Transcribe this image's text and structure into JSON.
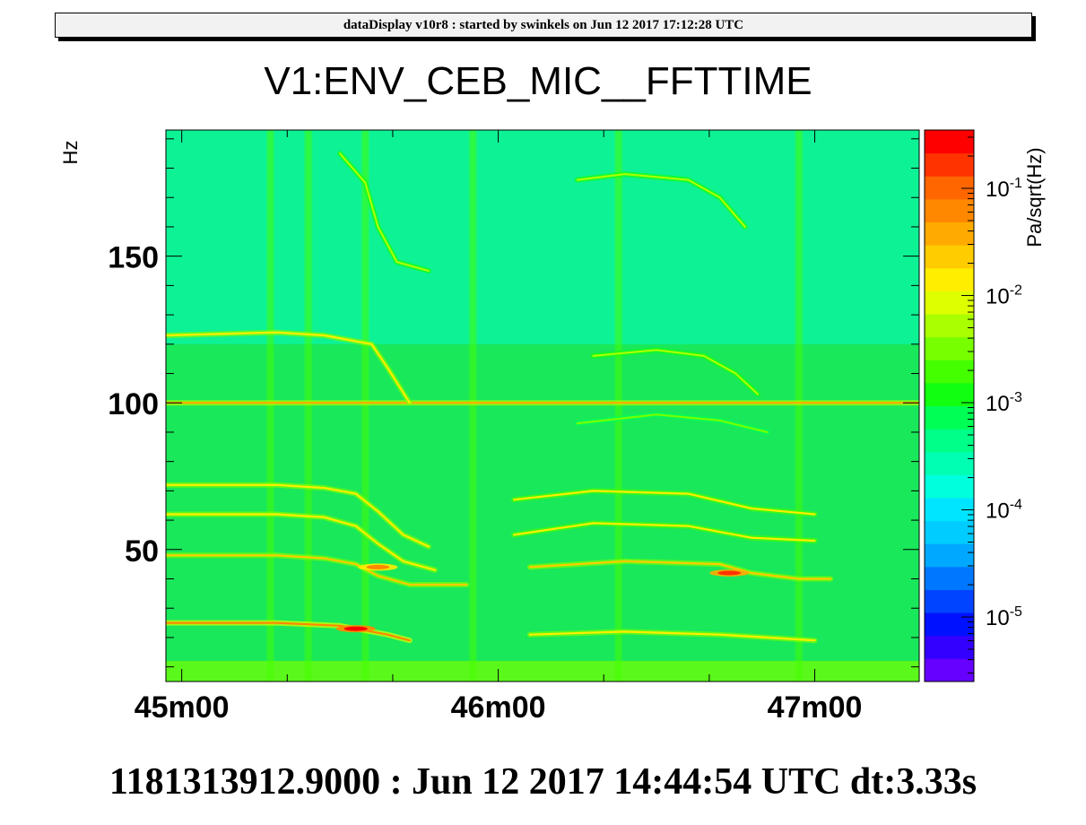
{
  "banner": {
    "text": "dataDisplay v10r8 : started by swinkels on Jun 12 2017 17:12:28 UTC"
  },
  "footer": {
    "text": "1181313912.9000 : Jun 12 2017 14:44:54 UTC dt:3.33s"
  },
  "chart_data": {
    "type": "heatmap",
    "title": "V1:ENV_CEB_MIC__FFTTIME",
    "xlabel": "",
    "ylabel": "Hz",
    "zlabel": "Pa/sqrt(Hz)",
    "x_unit": "minutes",
    "xlim": [
      44.95,
      47.33
    ],
    "ylim": [
      5,
      193
    ],
    "zlim": [
      2.5e-06,
      0.35
    ],
    "z_scale": "log",
    "x_ticks": [
      {
        "value": 45,
        "label": "45m00"
      },
      {
        "value": 46,
        "label": "46m00"
      },
      {
        "value": 47,
        "label": "47m00"
      }
    ],
    "y_ticks": [
      {
        "value": 50,
        "label": "50"
      },
      {
        "value": 100,
        "label": "100"
      },
      {
        "value": 150,
        "label": "150"
      }
    ],
    "z_ticks": [
      {
        "exp": -5,
        "label": "10",
        "sup": "-5"
      },
      {
        "exp": -4,
        "label": "10",
        "sup": "-4"
      },
      {
        "exp": -3,
        "label": "10",
        "sup": "-3"
      },
      {
        "exp": -2,
        "label": "10",
        "sup": "-2"
      },
      {
        "exp": -1,
        "label": "10",
        "sup": "-1"
      }
    ],
    "palette": [
      "#6600ff",
      "#3300ff",
      "#0011ff",
      "#0044ff",
      "#0077ff",
      "#00a8ff",
      "#00ccff",
      "#00e5ff",
      "#00ffdd",
      "#00ffb3",
      "#00ff88",
      "#00ff55",
      "#11ff11",
      "#44ff00",
      "#77ff00",
      "#aaff00",
      "#ddff00",
      "#ffee00",
      "#ffcc00",
      "#ffaa00",
      "#ff8800",
      "#ff6600",
      "#ff3300",
      "#ff0000"
    ],
    "background_level": 0.4,
    "background_color": "#19e85a",
    "lines": [
      {
        "name": "constant-100Hz",
        "points": [
          [
            44.95,
            100
          ],
          [
            47.33,
            100
          ]
        ],
        "level": 0.82
      },
      {
        "name": "tone-123",
        "points": [
          [
            44.95,
            123
          ],
          [
            45.3,
            124
          ],
          [
            45.45,
            123
          ],
          [
            45.6,
            120
          ],
          [
            45.65,
            112
          ],
          [
            45.72,
            100
          ]
        ],
        "level": 0.75
      },
      {
        "name": "tone-72",
        "points": [
          [
            44.95,
            72
          ],
          [
            45.3,
            72
          ],
          [
            45.45,
            71
          ],
          [
            45.55,
            69
          ],
          [
            45.62,
            63
          ],
          [
            45.7,
            55
          ],
          [
            45.78,
            51
          ]
        ],
        "level": 0.75
      },
      {
        "name": "tone-62",
        "points": [
          [
            44.95,
            62
          ],
          [
            45.3,
            62
          ],
          [
            45.45,
            61
          ],
          [
            45.55,
            58
          ],
          [
            45.62,
            52
          ],
          [
            45.7,
            46
          ],
          [
            45.8,
            43
          ]
        ],
        "level": 0.75
      },
      {
        "name": "tone-48",
        "points": [
          [
            44.95,
            48
          ],
          [
            45.3,
            48
          ],
          [
            45.45,
            47
          ],
          [
            45.55,
            45
          ],
          [
            45.62,
            41
          ],
          [
            45.72,
            38
          ],
          [
            45.9,
            38
          ]
        ],
        "level": 0.78
      },
      {
        "name": "tone-26",
        "points": [
          [
            44.95,
            25
          ],
          [
            45.3,
            25
          ],
          [
            45.5,
            24
          ],
          [
            45.65,
            21
          ],
          [
            45.72,
            19
          ]
        ],
        "level": 0.85
      },
      {
        "name": "descending-high",
        "points": [
          [
            45.5,
            185
          ],
          [
            45.58,
            175
          ],
          [
            45.62,
            160
          ],
          [
            45.68,
            148
          ],
          [
            45.78,
            145
          ]
        ],
        "level": 0.65
      },
      {
        "name": "recovery-70",
        "points": [
          [
            46.05,
            67
          ],
          [
            46.3,
            70
          ],
          [
            46.6,
            69
          ],
          [
            46.8,
            64
          ],
          [
            47.0,
            62
          ]
        ],
        "level": 0.72
      },
      {
        "name": "recovery-60",
        "points": [
          [
            46.05,
            55
          ],
          [
            46.3,
            59
          ],
          [
            46.6,
            58
          ],
          [
            46.8,
            54
          ],
          [
            47.0,
            53
          ]
        ],
        "level": 0.72
      },
      {
        "name": "recovery-45",
        "points": [
          [
            46.1,
            44
          ],
          [
            46.4,
            46
          ],
          [
            46.7,
            45
          ],
          [
            46.8,
            42
          ],
          [
            46.95,
            40
          ],
          [
            47.05,
            40
          ]
        ],
        "level": 0.78
      },
      {
        "name": "recovery-21",
        "points": [
          [
            46.1,
            21
          ],
          [
            46.4,
            22
          ],
          [
            46.7,
            21
          ],
          [
            46.85,
            20
          ],
          [
            47.0,
            19
          ]
        ],
        "level": 0.75
      },
      {
        "name": "arc-178",
        "points": [
          [
            46.25,
            176
          ],
          [
            46.4,
            178
          ],
          [
            46.6,
            176
          ],
          [
            46.7,
            170
          ],
          [
            46.78,
            160
          ]
        ],
        "level": 0.66
      },
      {
        "name": "arc-118",
        "points": [
          [
            46.3,
            116
          ],
          [
            46.5,
            118
          ],
          [
            46.65,
            116
          ],
          [
            46.75,
            110
          ],
          [
            46.82,
            103
          ]
        ],
        "level": 0.66
      },
      {
        "name": "arc-95",
        "points": [
          [
            46.25,
            93
          ],
          [
            46.5,
            96
          ],
          [
            46.7,
            94
          ],
          [
            46.85,
            90
          ]
        ],
        "level": 0.62
      }
    ],
    "vertical_streaks": [
      45.28,
      45.4,
      45.58,
      45.92,
      46.38,
      46.95
    ],
    "hotspots": [
      {
        "x": 45.55,
        "y": 23,
        "level": 0.98
      },
      {
        "x": 46.73,
        "y": 42,
        "level": 0.95
      },
      {
        "x": 45.62,
        "y": 44,
        "level": 0.88
      }
    ]
  }
}
